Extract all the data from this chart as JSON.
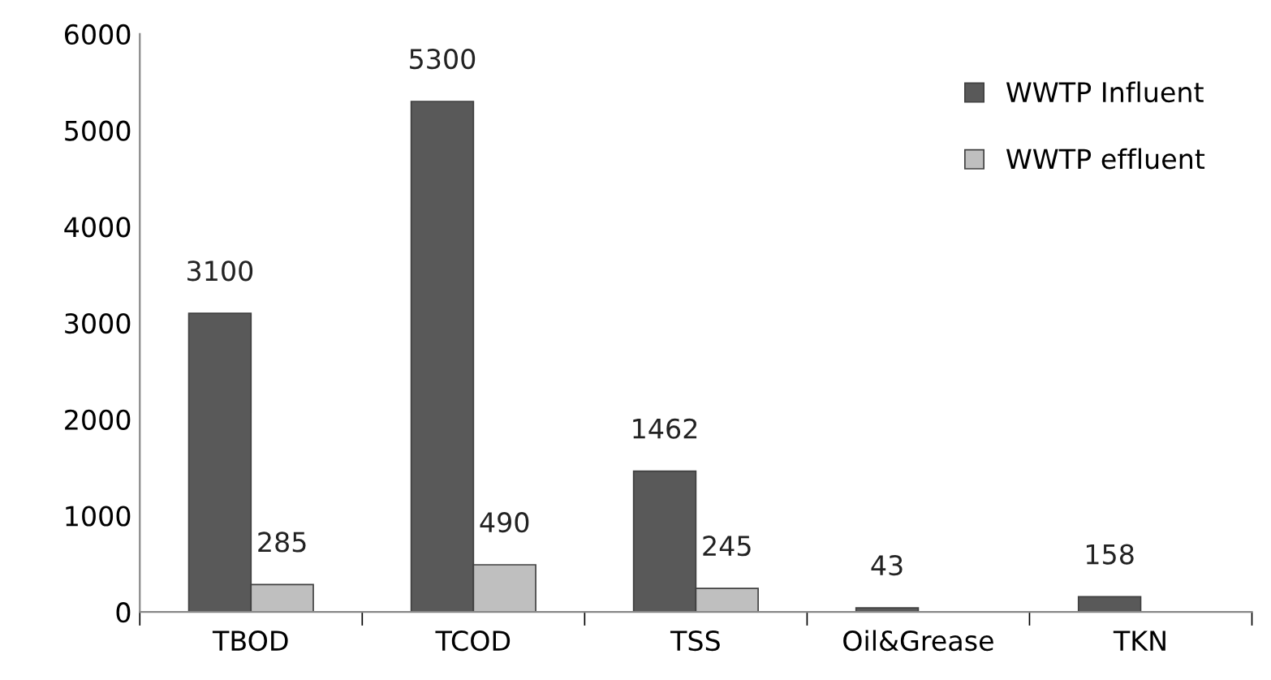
{
  "chart_data": {
    "type": "bar",
    "categories": [
      "TBOD",
      "TCOD",
      "TSS",
      "Oil&Grease",
      "TKN"
    ],
    "series": [
      {
        "name": "WWTP Influent",
        "color": "#595959",
        "values": [
          3100,
          5300,
          1462,
          43,
          158
        ]
      },
      {
        "name": "WWTP effluent",
        "color": "#bfbfbf",
        "values": [
          285,
          490,
          245,
          null,
          null
        ]
      }
    ],
    "ylim": [
      0,
      6000
    ],
    "yticks": [
      0,
      1000,
      2000,
      3000,
      4000,
      5000,
      6000
    ],
    "grid": false,
    "legend": "top right",
    "data_labels": true
  }
}
